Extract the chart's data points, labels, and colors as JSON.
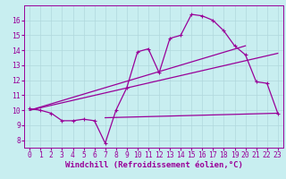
{
  "xlabel": "Windchill (Refroidissement éolien,°C)",
  "bg_color": "#c8eef0",
  "grid_color": "#b0d8dc",
  "line_color": "#990099",
  "xlim": [
    -0.5,
    23.5
  ],
  "ylim": [
    7.5,
    17.0
  ],
  "yticks": [
    8,
    9,
    10,
    11,
    12,
    13,
    14,
    15,
    16
  ],
  "xticks": [
    0,
    1,
    2,
    3,
    4,
    5,
    6,
    7,
    8,
    9,
    10,
    11,
    12,
    13,
    14,
    15,
    16,
    17,
    18,
    19,
    20,
    21,
    22,
    23
  ],
  "line1_x": [
    0,
    1,
    2,
    3,
    4,
    5,
    6,
    7,
    8,
    9,
    10,
    11,
    12,
    13,
    14,
    15,
    16,
    17,
    18,
    19,
    20,
    21,
    22,
    23
  ],
  "line1_y": [
    10.1,
    10.0,
    9.8,
    9.3,
    9.3,
    9.4,
    9.3,
    7.8,
    10.0,
    11.5,
    13.9,
    14.1,
    12.5,
    14.8,
    15.0,
    16.4,
    16.3,
    16.0,
    15.3,
    14.3,
    13.7,
    11.9,
    11.8,
    9.8
  ],
  "line2_x": [
    0,
    23
  ],
  "line2_y": [
    10.0,
    13.8
  ],
  "line3_x": [
    0,
    20
  ],
  "line3_y": [
    10.0,
    14.3
  ],
  "line4_x": [
    7,
    23
  ],
  "line4_y": [
    9.5,
    9.8
  ],
  "tick_fontsize": 5.8,
  "xlabel_fontsize": 6.5
}
